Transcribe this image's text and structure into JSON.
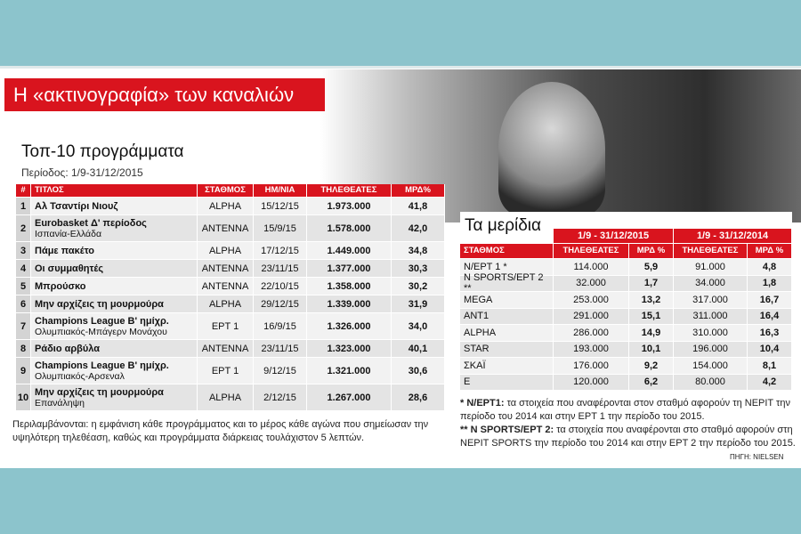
{
  "header": {
    "title": "Η «ακτινογραφία» των καναλιών"
  },
  "top10": {
    "title": "Τοπ-10 προγράμματα",
    "period": "Περίοδος: 1/9-31/12/2015",
    "columns": [
      "#",
      "ΤΙΤΛΟΣ",
      "ΣΤΑΘΜΟΣ",
      "ΗΜ/ΝΙΑ",
      "ΤΗΛΕΘΕΑΤΕΣ",
      "ΜΡΔ%"
    ],
    "rows": [
      {
        "rank": "1",
        "title": "Αλ Τσαντίρι Νιουζ",
        "station": "ALPHA",
        "date": "15/12/15",
        "viewers": "1.973.000",
        "share": "41,8"
      },
      {
        "rank": "2",
        "title": "Eurobasket Δ' περίοδος",
        "subtitle": "Ισπανία-Ελλάδα",
        "station": "ANTENNA",
        "date": "15/9/15",
        "viewers": "1.578.000",
        "share": "42,0"
      },
      {
        "rank": "3",
        "title": "Πάμε πακέτο",
        "station": "ALPHA",
        "date": "17/12/15",
        "viewers": "1.449.000",
        "share": "34,8"
      },
      {
        "rank": "4",
        "title": "Οι συμμαθητές",
        "station": "ANTENNA",
        "date": "23/11/15",
        "viewers": "1.377.000",
        "share": "30,3"
      },
      {
        "rank": "5",
        "title": "Μπρούσκο",
        "station": "ANTENNA",
        "date": "22/10/15",
        "viewers": "1.358.000",
        "share": "30,2"
      },
      {
        "rank": "6",
        "title": "Μην αρχίζεις τη μουρμούρα",
        "station": "ALPHA",
        "date": "29/12/15",
        "viewers": "1.339.000",
        "share": "31,9"
      },
      {
        "rank": "7",
        "title": "Champions League Β' ημίχρ.",
        "subtitle": "Ολυμπιακός-Μπάγερν Μονάχου",
        "station": "ΕΡΤ 1",
        "date": "16/9/15",
        "viewers": "1.326.000",
        "share": "34,0"
      },
      {
        "rank": "8",
        "title": "Ράδιο αρβύλα",
        "station": "ANTENNA",
        "date": "23/11/15",
        "viewers": "1.323.000",
        "share": "40,1"
      },
      {
        "rank": "9",
        "title": "Champions League Β' ημίχρ.",
        "subtitle": "Ολυμπιακός-Αρσεναλ",
        "station": "ΕΡΤ 1",
        "date": "9/12/15",
        "viewers": "1.321.000",
        "share": "30,6"
      },
      {
        "rank": "10",
        "title": "Μην αρχίζεις τη μουρμούρα",
        "subtitle": "Επανάληψη",
        "station": "ALPHA",
        "date": "2/12/15",
        "viewers": "1.267.000",
        "share": "28,6"
      }
    ],
    "note": "Περιλαμβάνονται: η εμφάνιση κάθε προγράμματος και το μέρος κάθε αγώνα που σημείωσαν την υψηλότερη τηλεθέαση, καθώς και προγράμματα διάρκειας τουλάχιστον 5 λεπτών."
  },
  "shares": {
    "title": "Τα μερίδια",
    "periods": [
      "1/9 - 31/12/2015",
      "1/9 - 31/12/2014"
    ],
    "columns": [
      "ΣΤΑΘΜΟΣ",
      "ΤΗΛΕΘΕΑΤΕΣ",
      "ΜΡΔ %",
      "ΤΗΛΕΘΕΑΤΕΣ",
      "ΜΡΔ %"
    ],
    "rows": [
      [
        "Ν/ΕΡΤ 1 *",
        "114.000",
        "5,9",
        "91.000",
        "4,8"
      ],
      [
        "N SPORTS/ΕΡΤ 2 **",
        "32.000",
        "1,7",
        "34.000",
        "1,8"
      ],
      [
        "MEGA",
        "253.000",
        "13,2",
        "317.000",
        "16,7"
      ],
      [
        "ANT1",
        "291.000",
        "15,1",
        "311.000",
        "16,4"
      ],
      [
        "ALPHA",
        "286.000",
        "14,9",
        "310.000",
        "16,3"
      ],
      [
        "STAR",
        "193.000",
        "10,1",
        "196.000",
        "10,4"
      ],
      [
        "ΣΚΑΪ",
        "176.000",
        "9,2",
        "154.000",
        "8,1"
      ],
      [
        "E",
        "120.000",
        "6,2",
        "80.000",
        "4,2"
      ]
    ],
    "notes": [
      {
        "mark": "* Ν/ΕΡΤ1:",
        "text": " τα στοιχεία που αναφέρονται στον σταθμό αφορούν τη ΝΕΡΙΤ την περίοδο του 2014 και στην ΕΡΤ 1 την περίοδο του 2015."
      },
      {
        "mark": "** N SPORTS/ΕΡΤ 2:",
        "text": " τα στοιχεία που αναφέρονται στο σταθμό αφορούν στη ΝΕΡΙΤ SPORTS  την περίοδο του 2014 και στην ΕΡΤ 2  την περίοδο του 2015."
      }
    ],
    "source": "ΠΗΓΗ: NIELSEN"
  }
}
